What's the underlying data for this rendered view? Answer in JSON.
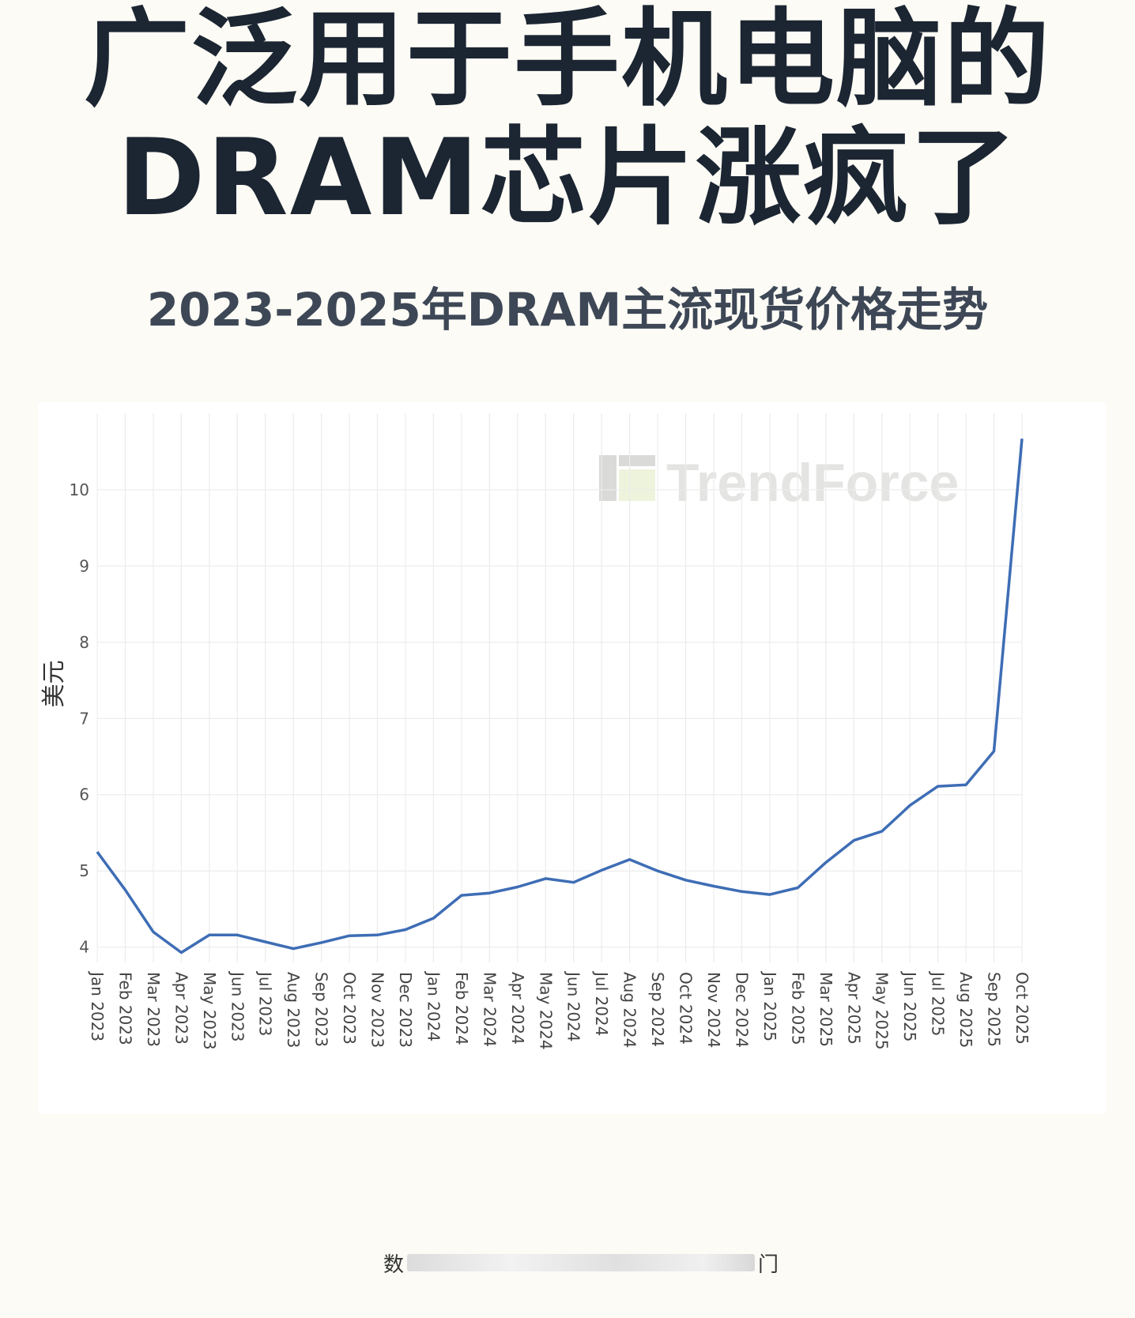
{
  "header": {
    "title_line1": "广泛用于手机电脑的",
    "title_line2": "DRAM芯片涨疯了",
    "subtitle": "2023-2025年DRAM主流现货价格走势"
  },
  "watermark": {
    "text": "TrendForce",
    "logo_colors": [
      "#d8d8d8",
      "#eef3dc"
    ]
  },
  "footer": {
    "left_char": "数",
    "right_char": "门"
  },
  "chart_data": {
    "type": "line",
    "title": "",
    "xlabel": "",
    "ylabel": "美元",
    "ylim": [
      3.8,
      10.9
    ],
    "yticks": [
      4,
      5,
      6,
      7,
      8,
      9,
      10
    ],
    "grid": true,
    "line_color": "#3e6db5",
    "categories": [
      "Jan 2023",
      "Feb 2023",
      "Mar 2023",
      "Apr 2023",
      "May 2023",
      "Jun 2023",
      "Jul 2023",
      "Aug 2023",
      "Sep 2023",
      "Oct 2023",
      "Nov 2023",
      "Dec 2023",
      "Jan 2024",
      "Feb 2024",
      "Mar 2024",
      "Apr 2024",
      "May 2024",
      "Jun 2024",
      "Jul 2024",
      "Aug 2024",
      "Sep 2024",
      "Oct 2024",
      "Nov 2024",
      "Dec 2024",
      "Jan 2025",
      "Feb 2025",
      "Mar 2025",
      "Apr 2025",
      "May 2025",
      "Jun 2025",
      "Jul 2025",
      "Aug 2025",
      "Sep 2025",
      "Oct 2025"
    ],
    "series": [
      {
        "values": [
          5.25,
          4.75,
          4.2,
          3.93,
          4.16,
          4.16,
          4.07,
          3.98,
          4.06,
          4.15,
          4.16,
          4.23,
          4.38,
          4.68,
          4.71,
          4.79,
          4.9,
          4.85,
          5.01,
          5.15,
          5.0,
          4.88,
          4.8,
          4.73,
          4.69,
          4.78,
          5.11,
          5.4,
          5.52,
          5.86,
          6.11,
          6.13,
          6.57,
          10.67
        ]
      }
    ]
  }
}
